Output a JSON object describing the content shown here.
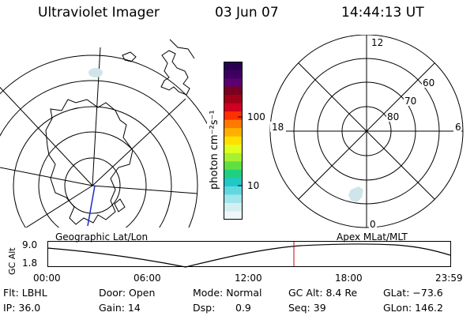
{
  "header": {
    "instrument": "Ultraviolet Imager",
    "date": "03 Jun 07",
    "time": "14:44:13 UT"
  },
  "colorbar": {
    "unit": "photon cm⁻²s⁻¹",
    "ticks": [
      "100",
      "10"
    ],
    "colors": [
      "#2a0050",
      "#3b0060",
      "#5a0070",
      "#7a0020",
      "#a0001a",
      "#d00020",
      "#ff3000",
      "#ff7a00",
      "#ffb000",
      "#ffe000",
      "#e0ff20",
      "#a8f030",
      "#60e040",
      "#20d080",
      "#20c8c8",
      "#60d8e0",
      "#a0e4ec",
      "#d4eef2",
      "#eef7f9"
    ]
  },
  "left_map": {
    "label": "Geographic Lat/Lon"
  },
  "right_map": {
    "label": "Apex MLat/MLT",
    "mlt_labels": [
      "12",
      "18",
      "6",
      "0"
    ],
    "mlat_labels": [
      "60",
      "70",
      "80"
    ]
  },
  "altitude_plot": {
    "ylabel": "GC Alt",
    "yticks": [
      "9.0",
      "1.8"
    ],
    "xticks": [
      "00:00",
      "06:00",
      "12:00",
      "18:00",
      "23:59"
    ],
    "current_time_marker": "14:44",
    "marker_color": "#cc0000"
  },
  "status": {
    "flt": "Flt: LBHL",
    "ip": "IP: 36.0",
    "door": "Door: Open",
    "gain": "Gain: 14",
    "mode": "Mode: Normal",
    "dsp_label": "Dsp:",
    "dsp_value": "0.9",
    "gc_alt": "GC Alt: 8.4 Re",
    "seq": "Seq: 39",
    "glat": "GLat: −73.6",
    "glon": "GLon: 146.2"
  }
}
